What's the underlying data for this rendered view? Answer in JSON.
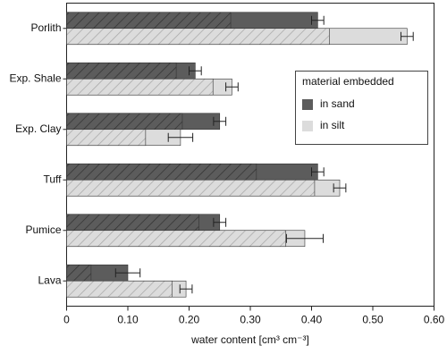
{
  "chart_data": {
    "type": "bar",
    "orientation": "horizontal",
    "x_label": "water content [cm³ cm⁻³]",
    "categories": [
      "Porlith",
      "Exp. Shale",
      "Exp. Clay",
      "Tuff",
      "Pumice",
      "Lava"
    ],
    "legend_title": "material embedded",
    "legend": "upper right",
    "series": [
      {
        "name": "in sand",
        "color": "#5c5c5c",
        "hatch_color": "#333333",
        "values": [
          0.41,
          0.21,
          0.25,
          0.41,
          0.25,
          0.1
        ],
        "inner_values": [
          0.268,
          0.179,
          0.189,
          0.31,
          0.216,
          0.04
        ],
        "errors": [
          0.01,
          0.01,
          0.01,
          0.01,
          0.01,
          0.02
        ]
      },
      {
        "name": "in silt",
        "color": "#dcdcdc",
        "hatch_color": "#a8a8a8",
        "values": [
          0.556,
          0.27,
          0.186,
          0.446,
          0.389,
          0.195
        ],
        "inner_values": [
          0.429,
          0.239,
          0.129,
          0.405,
          0.358,
          0.172
        ],
        "errors": [
          0.01,
          0.01,
          0.02,
          0.01,
          0.03,
          0.01
        ]
      }
    ],
    "xlim": [
      0,
      0.6
    ],
    "xticks": [
      0,
      {
        "value": 0.1,
        "label": "0.10"
      },
      {
        "value": 0.2,
        "label": "0.20"
      },
      {
        "value": 0.3,
        "label": "0.30"
      },
      {
        "value": 0.4,
        "label": "0.40"
      },
      {
        "value": 0.5,
        "label": "0.50"
      },
      {
        "value": 0.6,
        "label": "0.60"
      }
    ]
  }
}
